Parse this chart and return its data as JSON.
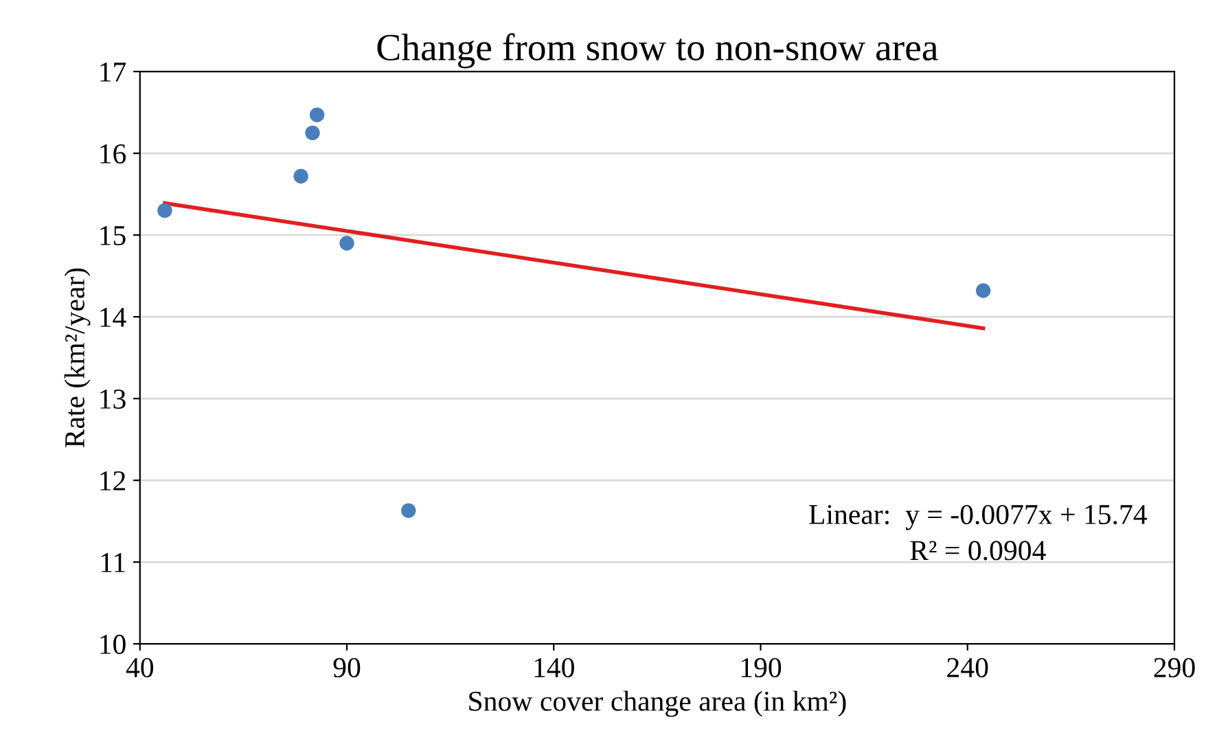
{
  "chart_data": {
    "type": "scatter",
    "title": "Change from snow to non-snow area",
    "xlabel": "Snow cover change area (in km²)",
    "ylabel": "Rate (km²/year)",
    "series": [
      {
        "marker": "circle",
        "color": "#4a7ebb",
        "x": [
          46,
          78.9,
          81.7,
          82.8,
          90,
          104.9,
          243.8
        ],
        "values": [
          15.3,
          15.72,
          16.25,
          16.47,
          14.9,
          11.63,
          14.32
        ]
      },
      {
        "type": "line",
        "color": "#e02020",
        "x": [
          46,
          243.8
        ],
        "values": [
          15.39,
          13.86
        ]
      }
    ],
    "xlim": [
      40,
      290
    ],
    "xticks": [
      40,
      90,
      140,
      190,
      240,
      290
    ],
    "ylim": [
      10,
      17
    ],
    "yticks": [
      10,
      11,
      12,
      13,
      14,
      15,
      16,
      17
    ],
    "grid": "y",
    "annotations": [
      "Linear:  y = -0.0077x + 15.74\nR² = 0.0904"
    ]
  }
}
